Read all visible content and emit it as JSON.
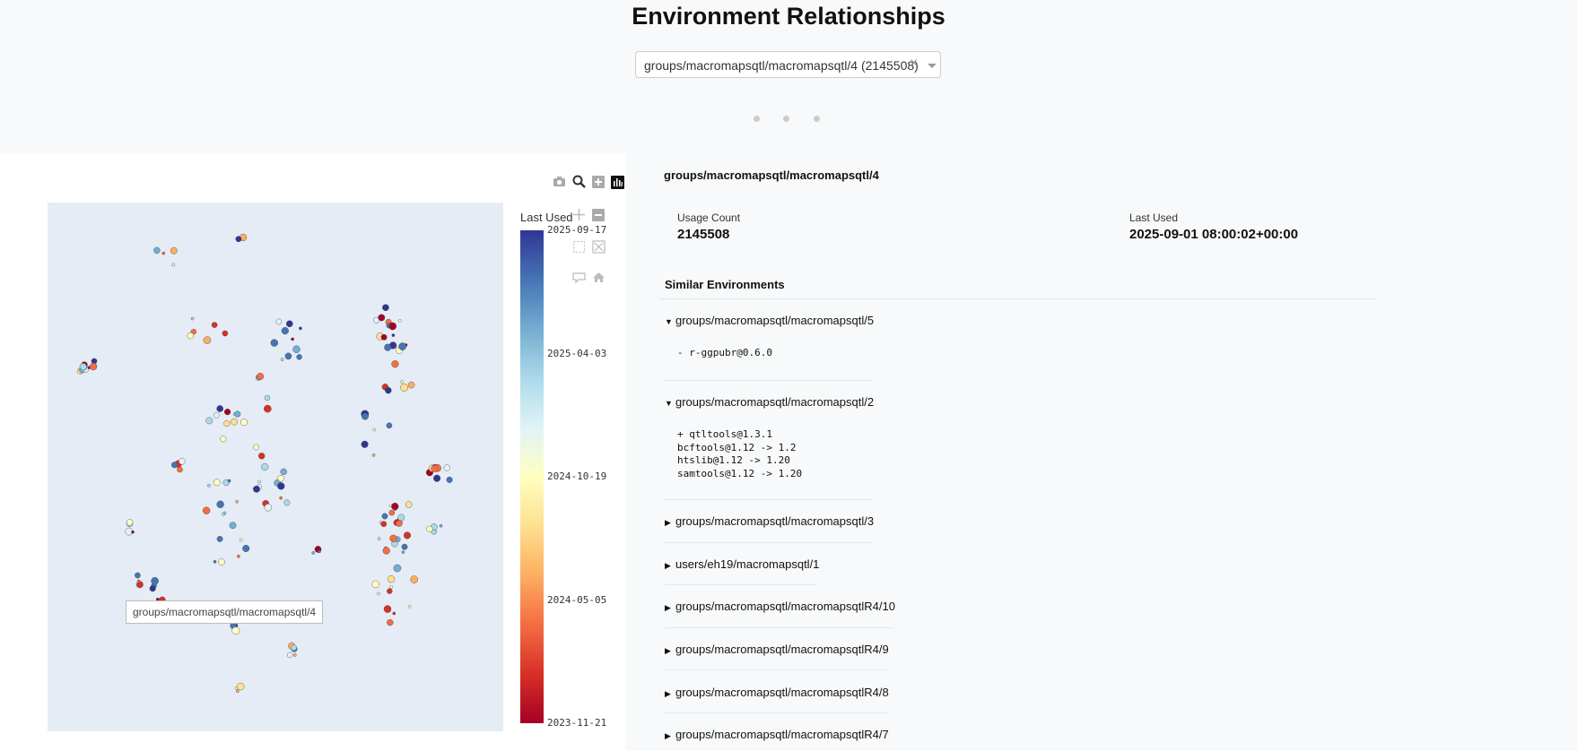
{
  "header": {
    "title": "Environment Relationships"
  },
  "selector": {
    "value": "groups/macromapsqtl/macromapsqtl/4 (2145508)",
    "clear_icon": "×"
  },
  "loading": {
    "dots": 3
  },
  "plot": {
    "modebar": [
      "camera-icon",
      "zoom-icon",
      "zoom-in-icon",
      "plotly-logo",
      "pan-icon",
      "zoom-out-icon",
      "box-select-icon",
      "autoscale-icon",
      "compare-hover-icon",
      "home-icon"
    ],
    "tooltip": "groups/macromapsqtl/macromapsqtl/4",
    "colorbar": {
      "title": "Last Used",
      "ticks": [
        "2025-09-17",
        "2025-04-03",
        "2024-10-19",
        "2024-05-05",
        "2023-11-21"
      ],
      "colorscale": [
        "#313695",
        "#4575b4",
        "#74add1",
        "#abd9e9",
        "#e0f3f8",
        "#ffffbf",
        "#fee090",
        "#fdae61",
        "#f46d43",
        "#d73027",
        "#a50026"
      ]
    }
  },
  "details": {
    "name": "groups/macromapsqtl/macromapsqtl/4",
    "usage_label": "Usage Count",
    "usage_value": "2145508",
    "last_used_label": "Last Used",
    "last_used_value": "2025-09-01 08:00:02+00:00"
  },
  "similar": {
    "title": "Similar Environments",
    "items": [
      {
        "name": "groups/macromapsqtl/macromapsqtl/5",
        "expanded": true,
        "arrow": "▼",
        "diff": "- r-ggpubr@0.6.0"
      },
      {
        "name": "groups/macromapsqtl/macromapsqtl/2",
        "expanded": true,
        "arrow": "▼",
        "diff": "+ qtltools@1.3.1\nbcftools@1.12 -> 1.2\nhtslib@1.12 -> 1.20\nsamtools@1.12 -> 1.20"
      },
      {
        "name": "groups/macromapsqtl/macromapsqtl/3",
        "expanded": false,
        "arrow": "▶"
      },
      {
        "name": "users/eh19/macromapsqtl/1",
        "expanded": false,
        "arrow": "▶"
      },
      {
        "name": "groups/macromapsqtl/macromapsqtlR4/10",
        "expanded": false,
        "arrow": "▶"
      },
      {
        "name": "groups/macromapsqtl/macromapsqtlR4/9",
        "expanded": false,
        "arrow": "▶"
      },
      {
        "name": "groups/macromapsqtl/macromapsqtlR4/8",
        "expanded": false,
        "arrow": "▶"
      },
      {
        "name": "groups/macromapsqtl/macromapsqtlR4/7",
        "expanded": false,
        "arrow": "▶"
      }
    ]
  }
}
